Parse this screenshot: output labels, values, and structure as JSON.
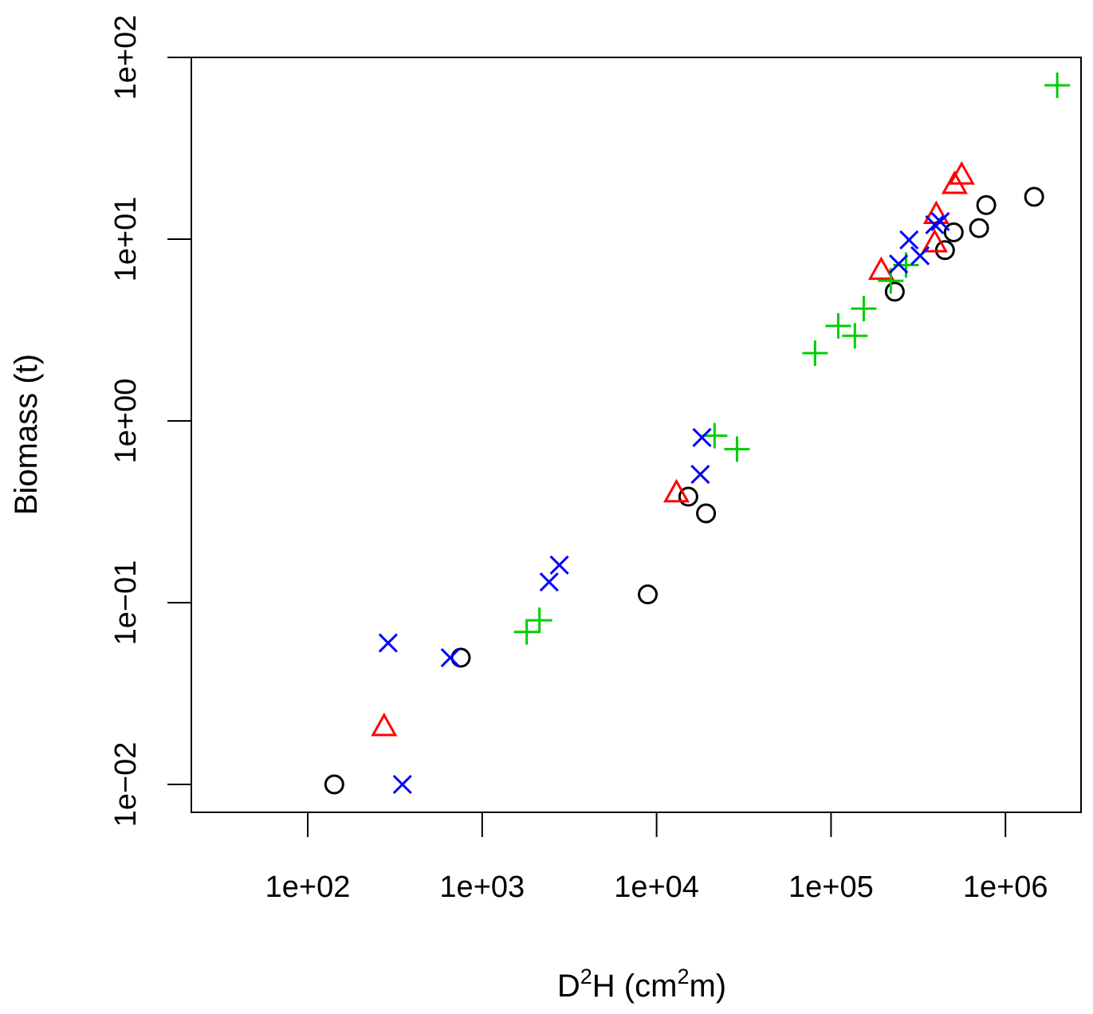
{
  "chart_data": {
    "type": "scatter",
    "title": "",
    "xlabel": {
      "base": "D",
      "sup1": "2",
      "mid": "H (cm",
      "sup2": "2",
      "end": "m)"
    },
    "ylabel": "Biomass (t)",
    "xscale": "log",
    "yscale": "log",
    "xlim": [
      22,
      2600000
    ],
    "ylim": [
      0.0056,
      100
    ],
    "grid": false,
    "x_ticks": [
      100,
      1000,
      10000,
      100000,
      1000000
    ],
    "x_tick_labels": [
      "1e+02",
      "1e+03",
      "1e+04",
      "1e+05",
      "1e+06"
    ],
    "y_ticks": [
      0.01,
      0.1,
      1,
      10,
      100
    ],
    "y_tick_labels": [
      "1e−02",
      "1e−01",
      "1e+00",
      "1e+01",
      "1e+02"
    ],
    "series": [
      {
        "marker": "circle",
        "color": "#000000",
        "points": [
          [
            142,
            0.01
          ],
          [
            754,
            0.0498
          ],
          [
            8900,
            0.111
          ],
          [
            15200,
            0.383
          ],
          [
            19200,
            0.31
          ],
          [
            232000,
            5.14
          ],
          [
            450000,
            8.7
          ],
          [
            505000,
            10.9
          ],
          [
            706000,
            11.5
          ],
          [
            776000,
            15.4
          ],
          [
            1460000,
            17.1
          ]
        ]
      },
      {
        "marker": "triangle",
        "color": "#FF0000",
        "points": [
          [
            274,
            0.0207
          ],
          [
            13000,
            0.4
          ],
          [
            194000,
            6.7
          ],
          [
            393000,
            9.5
          ],
          [
            401000,
            13.6
          ],
          [
            511000,
            19.9
          ],
          [
            561000,
            22.4
          ]
        ]
      },
      {
        "marker": "plus",
        "color": "#00CD00",
        "points": [
          [
            1800,
            0.069
          ],
          [
            2130,
            0.08
          ],
          [
            21500,
            0.83
          ],
          [
            28900,
            0.7
          ],
          [
            81000,
            2.36
          ],
          [
            110000,
            3.33
          ],
          [
            137000,
            2.94
          ],
          [
            154000,
            4.15
          ],
          [
            220000,
            5.9
          ],
          [
            269000,
            7.2
          ],
          [
            1980000,
            70.2
          ]
        ]
      },
      {
        "marker": "cross",
        "color": "#0000FF",
        "points": [
          [
            289,
            0.06
          ],
          [
            349,
            0.01
          ],
          [
            656,
            0.0498
          ],
          [
            2420,
            0.13
          ],
          [
            2770,
            0.161
          ],
          [
            17800,
            0.508
          ],
          [
            18200,
            0.81
          ],
          [
            244000,
            7.3
          ],
          [
            280000,
            9.9
          ],
          [
            324000,
            8.1
          ],
          [
            393000,
            12.0
          ],
          [
            423000,
            12.5
          ]
        ]
      }
    ]
  }
}
